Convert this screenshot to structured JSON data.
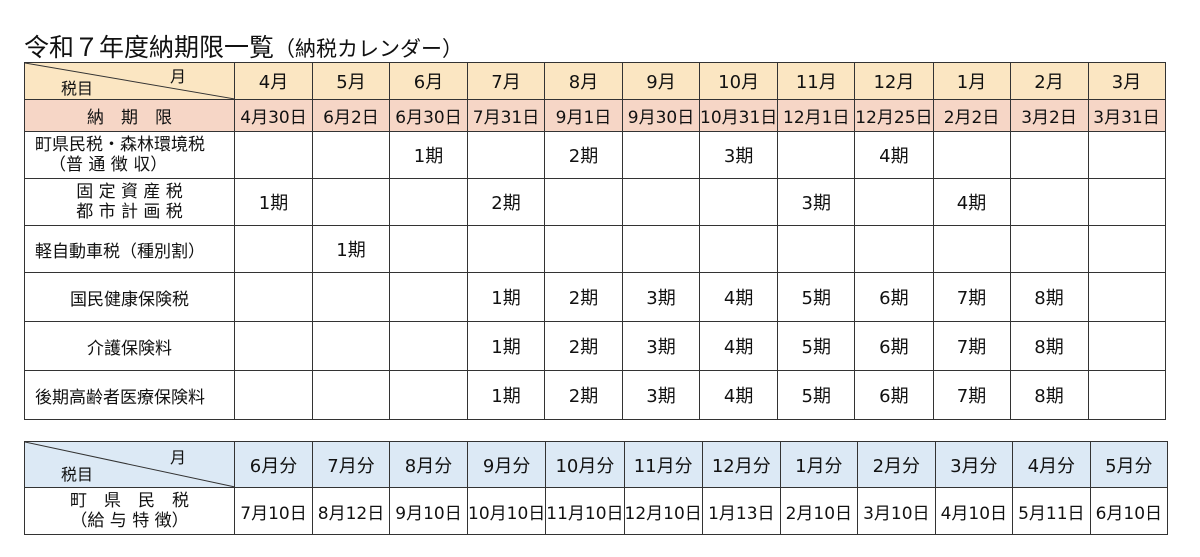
{
  "title": {
    "main": "令和７年度納期限一覧",
    "sub": "（納税カレンダー）"
  },
  "table1": {
    "corner_month": "月",
    "corner_item": "税目",
    "months": [
      "4月",
      "5月",
      "6月",
      "7月",
      "8月",
      "9月",
      "10月",
      "11月",
      "12月",
      "1月",
      "2月",
      "3月"
    ],
    "due_label": "納　期　限",
    "due_dates": [
      "4月30日",
      "6月2日",
      "6月30日",
      "7月31日",
      "9月1日",
      "9月30日",
      "10月31日",
      "12月1日",
      "12月25日",
      "2月2日",
      "3月2日",
      "3月31日"
    ],
    "rows": [
      {
        "label_line1": "町県民税・森林環境税",
        "label_line2": "（普 通 徴 収）",
        "cells": [
          "",
          "",
          "1期",
          "",
          "2期",
          "",
          "3期",
          "",
          "4期",
          "",
          "",
          ""
        ]
      },
      {
        "label_line1": "固 定 資 産 税",
        "label_line2": "都 市 計 画 税",
        "cells": [
          "1期",
          "",
          "",
          "2期",
          "",
          "",
          "",
          "3期",
          "",
          "4期",
          "",
          ""
        ]
      },
      {
        "label_line1": "軽自動車税（種別割）",
        "cells": [
          "",
          "1期",
          "",
          "",
          "",
          "",
          "",
          "",
          "",
          "",
          "",
          ""
        ]
      },
      {
        "label_line1": "国民健康保険税",
        "cells": [
          "",
          "",
          "",
          "1期",
          "2期",
          "3期",
          "4期",
          "5期",
          "6期",
          "7期",
          "8期",
          ""
        ]
      },
      {
        "label_line1": "介護保険料",
        "cells": [
          "",
          "",
          "",
          "1期",
          "2期",
          "3期",
          "4期",
          "5期",
          "6期",
          "7期",
          "8期",
          ""
        ]
      },
      {
        "label_line1": "後期高齢者医療保険料",
        "cells": [
          "",
          "",
          "",
          "1期",
          "2期",
          "3期",
          "4期",
          "5期",
          "6期",
          "7期",
          "8期",
          ""
        ]
      }
    ]
  },
  "table2": {
    "corner_month": "月",
    "corner_item": "税目",
    "months": [
      "6月分",
      "7月分",
      "8月分",
      "9月分",
      "10月分",
      "11月分",
      "12月分",
      "1月分",
      "2月分",
      "3月分",
      "4月分",
      "5月分"
    ],
    "row_label_line1": "町　県　民　税",
    "row_label_line2": "（給 与 特 徴）",
    "dates": [
      "7月10日",
      "8月12日",
      "9月10日",
      "10月10日",
      "11月10日",
      "12月10日",
      "1月13日",
      "2月10日",
      "3月10日",
      "4月10日",
      "5月11日",
      "6月10日"
    ]
  },
  "colors": {
    "month_header": "#fbe6c2",
    "due_row": "#f6d6c6",
    "special_header": "#dce9f5"
  }
}
